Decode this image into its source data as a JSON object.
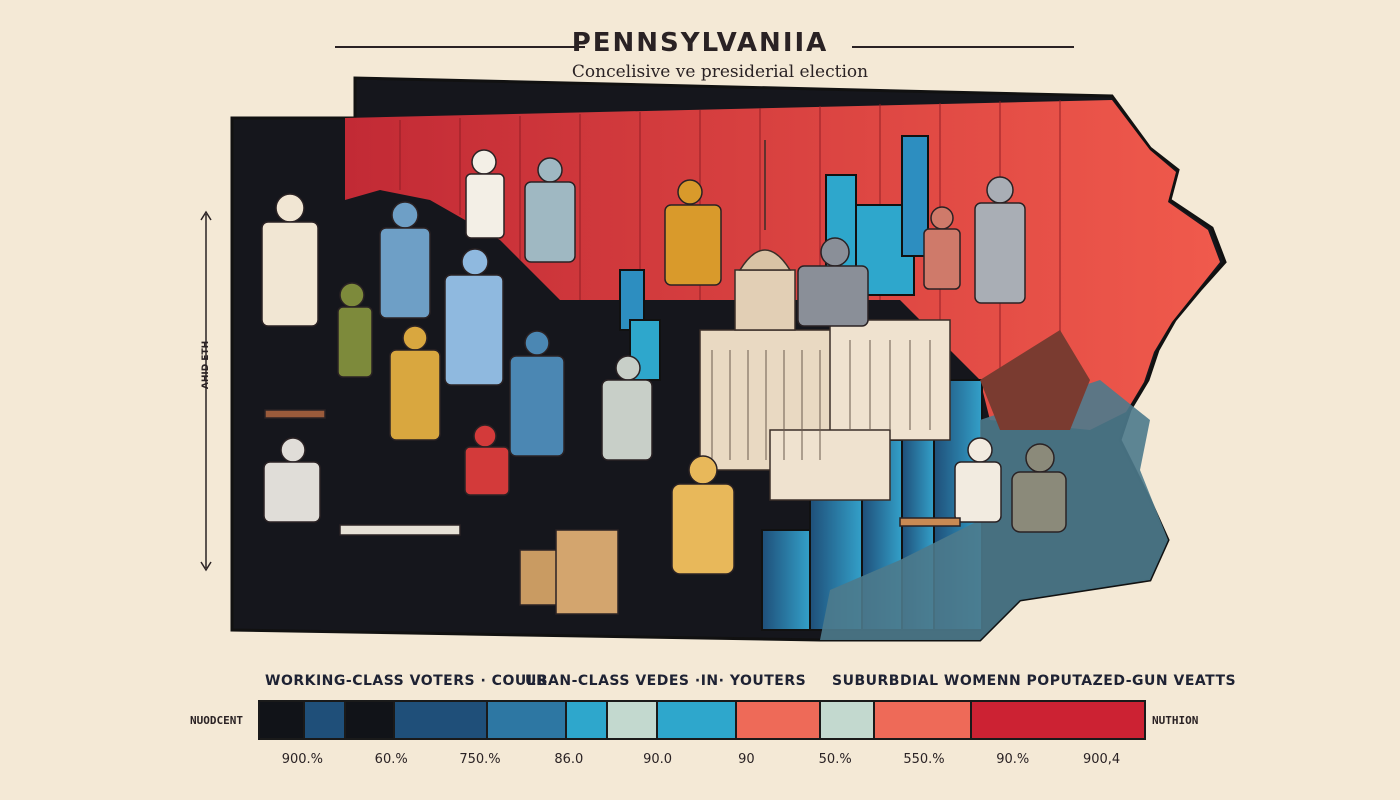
{
  "header": {
    "title": "PENNSYLVANIIA",
    "subtitle": "Concelisive ve  presiderial election"
  },
  "axis": {
    "vertical_label": "AHID ETH"
  },
  "categories": [
    "WORKING-CLASS VOTERS · COULR",
    "UBAN-CLASS  VEDES  ·IN·  YOUTERS",
    "SUBURBDIAL WOMENN POPUTAZED-GUN VEATTS"
  ],
  "legend_bar": {
    "left_label": "NUODCENT",
    "right_label": "NUTHION",
    "segments": [
      {
        "color": "#111318",
        "share": 0.05
      },
      {
        "color": "#1f4f79",
        "share": 0.045
      },
      {
        "color": "#111318",
        "share": 0.055
      },
      {
        "color": "#1f4f79",
        "share": 0.105
      },
      {
        "color": "#2d77a3",
        "share": 0.09
      },
      {
        "color": "#2ea7cc",
        "share": 0.045
      },
      {
        "color": "#c3d9cf",
        "share": 0.055
      },
      {
        "color": "#2ea7cc",
        "share": 0.09
      },
      {
        "color": "#ee6a58",
        "share": 0.095
      },
      {
        "color": "#c3d9cf",
        "share": 0.06
      },
      {
        "color": "#ee6a58",
        "share": 0.11
      },
      {
        "color": "#cc2233",
        "share": 0.2
      }
    ],
    "ticks": [
      "900.%",
      "60.%",
      "750.%",
      "86.0",
      "90.0",
      "90",
      "50.%",
      "550.%",
      "90.%",
      "900,4"
    ]
  },
  "colors": {
    "background": "#f4e9d6",
    "black": "#111318",
    "navy": "#1f4f79",
    "blue": "#2d77a3",
    "cyan": "#2ea7cc",
    "salmon": "#ee6a58",
    "red": "#cc2233"
  }
}
